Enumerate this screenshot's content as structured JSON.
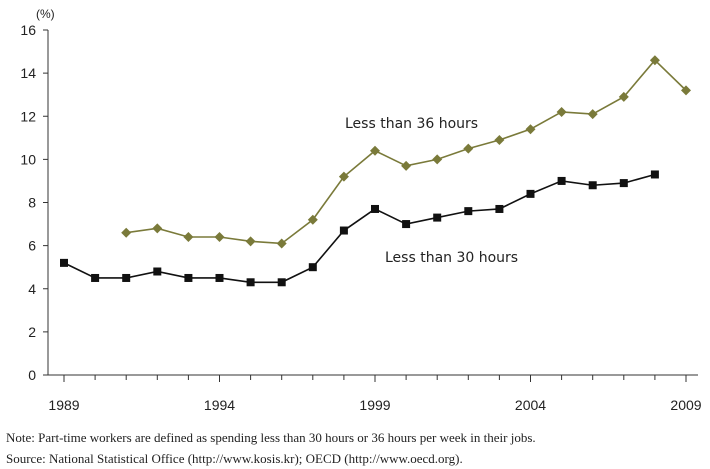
{
  "chart_data": {
    "type": "line",
    "ylabel": "(%)",
    "ylim": [
      0,
      16
    ],
    "yticks": [
      "0",
      "2",
      "4",
      "6",
      "8",
      "10",
      "12",
      "14",
      "16"
    ],
    "xlim": [
      1989,
      2009
    ],
    "xticks": [
      "1989",
      "1994",
      "1999",
      "2004",
      "2009"
    ],
    "grid": false,
    "series": [
      {
        "name": "Less than 36 hours",
        "color": "#7a7a3a",
        "marker": "diamond",
        "x": [
          1991,
          1992,
          1993,
          1994,
          1995,
          1996,
          1997,
          1998,
          1999,
          2000,
          2001,
          2002,
          2003,
          2004,
          2005,
          2006,
          2007,
          2008,
          2009
        ],
        "values": [
          6.6,
          6.8,
          6.4,
          6.4,
          6.2,
          6.1,
          7.2,
          9.2,
          10.4,
          9.7,
          10.0,
          10.5,
          10.9,
          11.4,
          12.2,
          12.1,
          12.9,
          14.6,
          13.2
        ]
      },
      {
        "name": "Less than 30 hours",
        "color": "#111111",
        "marker": "square",
        "x": [
          1989,
          1990,
          1991,
          1992,
          1993,
          1994,
          1995,
          1996,
          1997,
          1998,
          1999,
          2000,
          2001,
          2002,
          2003,
          2004,
          2005,
          2006,
          2007,
          2008
        ],
        "values": [
          5.2,
          4.5,
          4.5,
          4.8,
          4.5,
          4.5,
          4.3,
          4.3,
          5.0,
          6.7,
          7.7,
          7.0,
          7.3,
          7.6,
          7.7,
          8.4,
          9.0,
          8.8,
          8.9,
          9.3
        ]
      }
    ]
  },
  "notes": {
    "note": "Note: Part-time workers are defined as spending less than 30 hours or 36 hours per week in their jobs.",
    "source": "Source: National Statistical Office (http://www.kosis.kr); OECD (http://www.oecd.org)."
  }
}
